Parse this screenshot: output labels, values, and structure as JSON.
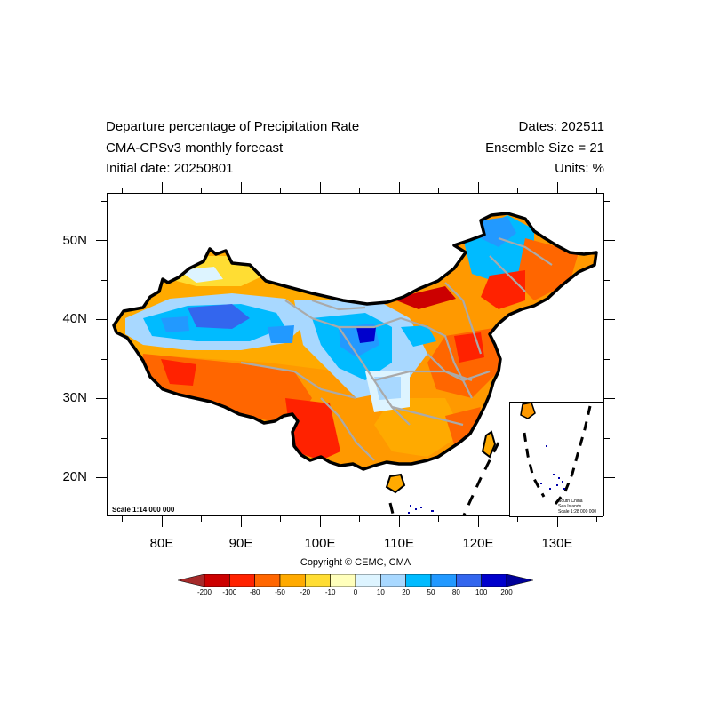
{
  "header": {
    "title_line1": "Departure percentage of Precipitation Rate",
    "title_line2": "CMA-CPSv3 monthly forecast",
    "title_line3": "Initial date: 20250801",
    "dates": "Dates: 202511",
    "ensemble": "Ensemble Size = 21",
    "units": "Units: %"
  },
  "map": {
    "lat_labels": [
      "20N",
      "30N",
      "40N",
      "50N"
    ],
    "lon_labels": [
      "80E",
      "90E",
      "100E",
      "110E",
      "120E",
      "130E"
    ],
    "scale_text": "Scale 1:14 000 000",
    "inset_caption": [
      "South China",
      "Sea Islands",
      "Scale 1:28 000 000"
    ],
    "copyright": "Copyright © CEMC, CMA"
  },
  "legend": {
    "labels": [
      "-200",
      "-100",
      "-80",
      "-50",
      "-20",
      "-10",
      "0",
      "10",
      "20",
      "50",
      "80",
      "100",
      "200"
    ],
    "colors": [
      "#a52a2a",
      "#cc0000",
      "#ff2200",
      "#ff6600",
      "#ffaa00",
      "#ffdd33",
      "#ffffbb",
      "#ddf4ff",
      "#a8d8ff",
      "#00bbff",
      "#2299ff",
      "#3366ee",
      "#0000cc",
      "#000099"
    ]
  }
}
